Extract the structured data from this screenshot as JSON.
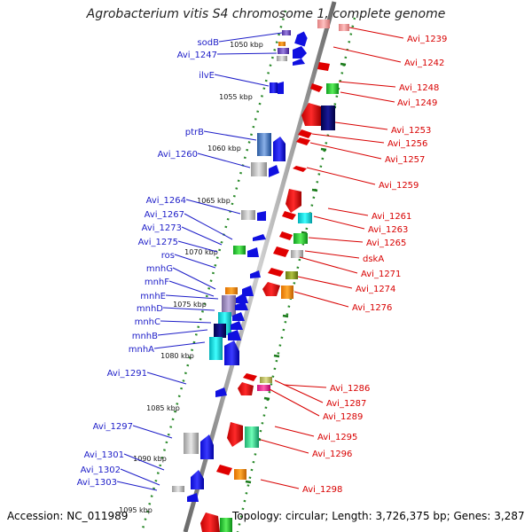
{
  "title": "Agrobacterium vitis S4 chromosome 1, complete genome",
  "footer": {
    "accession": "Accession: NC_011989",
    "stats": "Topology: circular; Length: 3,726,375 bp; Genes: 3,287"
  },
  "colors": {
    "backbone": "#8a8a8a",
    "dots": "#2a8a2a",
    "left_label": "#1d1dc8",
    "right_label": "#d80000"
  },
  "kbp_marks": [
    {
      "text": "1050 kbp"
    },
    {
      "text": "1055 kbp"
    },
    {
      "text": "1060 kbp"
    },
    {
      "text": "1065 kbp"
    },
    {
      "text": "1070 kbp"
    },
    {
      "text": "1075 kbp"
    },
    {
      "text": "1080 kbp"
    },
    {
      "text": "1085 kbp"
    },
    {
      "text": "1090 kbp"
    },
    {
      "text": "1095 kbp"
    }
  ],
  "left_labels": [
    {
      "text": "sodB"
    },
    {
      "text": "Avi_1247"
    },
    {
      "text": "ilvE"
    },
    {
      "text": "ptrB"
    },
    {
      "text": "Avi_1260"
    },
    {
      "text": "Avi_1264"
    },
    {
      "text": "Avi_1267"
    },
    {
      "text": "Avi_1273"
    },
    {
      "text": "Avi_1275"
    },
    {
      "text": "ros"
    },
    {
      "text": "mnhG"
    },
    {
      "text": "mnhF"
    },
    {
      "text": "mnhE"
    },
    {
      "text": "mnhD"
    },
    {
      "text": "mnhC"
    },
    {
      "text": "mnhB"
    },
    {
      "text": "mnhA"
    },
    {
      "text": "Avi_1291"
    },
    {
      "text": "Avi_1297"
    },
    {
      "text": "Avi_1301"
    },
    {
      "text": "Avi_1302"
    },
    {
      "text": "Avi_1303"
    }
  ],
  "right_labels": [
    {
      "text": "Avi_1239"
    },
    {
      "text": "Avi_1242"
    },
    {
      "text": "Avi_1248"
    },
    {
      "text": "Avi_1249"
    },
    {
      "text": "Avi_1253"
    },
    {
      "text": "Avi_1256"
    },
    {
      "text": "Avi_1257"
    },
    {
      "text": "Avi_1259"
    },
    {
      "text": "Avi_1261"
    },
    {
      "text": "Avi_1263"
    },
    {
      "text": "Avi_1265"
    },
    {
      "text": "dskA"
    },
    {
      "text": "Avi_1271"
    },
    {
      "text": "Avi_1274"
    },
    {
      "text": "Avi_1276"
    },
    {
      "text": "Avi_1286"
    },
    {
      "text": "Avi_1287"
    },
    {
      "text": "Avi_1289"
    },
    {
      "text": "Avi_1295"
    },
    {
      "text": "Avi_1296"
    },
    {
      "text": "Avi_1298"
    }
  ]
}
